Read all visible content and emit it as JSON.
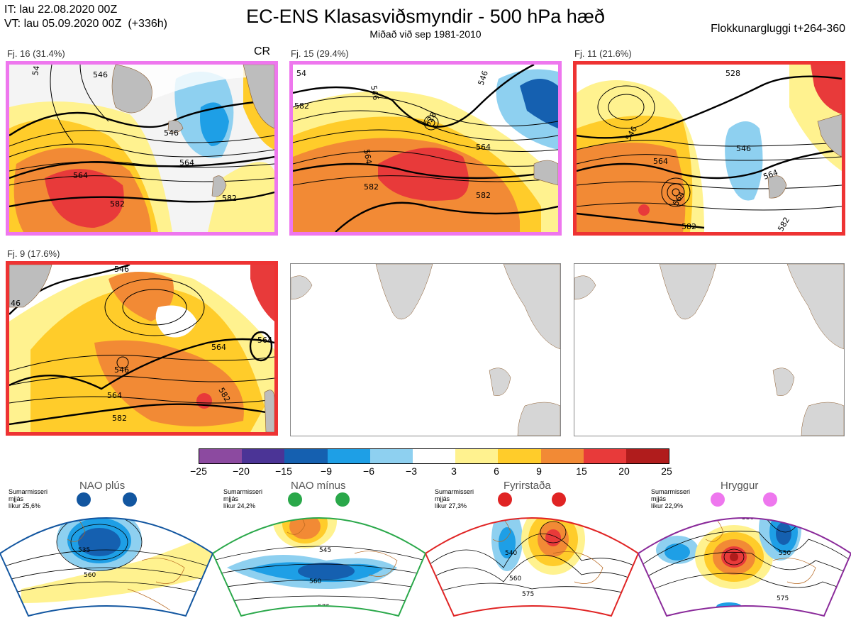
{
  "header": {
    "it_line": "IT: lau 22.08.2020 00Z",
    "vt_line": "VT: lau 05.09.2020 00Z  (+336h)",
    "title": "EC-ENS Klasasviðsmyndir - 500 hPa hæð",
    "subtitle": "Miðað við sep 1981-2010",
    "window": "Flokkunargluggi t+264-360"
  },
  "panels": [
    {
      "label": "Fj. 16 (31.4%)",
      "tag": "CR",
      "border_color": "#ee77ee",
      "contours": [
        "546",
        "546",
        "546",
        "564",
        "564",
        "582",
        "582",
        "54"
      ]
    },
    {
      "label": "Fj. 15 (29.4%)",
      "tag": "",
      "border_color": "#ee77ee",
      "contours": [
        "54",
        "582",
        "546",
        "528",
        "564",
        "546",
        "564",
        "582",
        "582"
      ]
    },
    {
      "label": "Fj. 11 (21.6%)",
      "tag": "",
      "border_color": "#ee3333",
      "contours": [
        "528",
        "546",
        "546",
        "564",
        "564",
        "564",
        "582",
        "582"
      ]
    },
    {
      "label": "Fj. 9 (17.6%)",
      "tag": "",
      "border_color": "#ee3333",
      "contours": [
        "546",
        "46",
        "546",
        "564",
        "564",
        "564",
        "582",
        "582"
      ]
    }
  ],
  "colorbar": {
    "ticks": [
      "−25",
      "−20",
      "−15",
      "−9",
      "−6",
      "−3",
      "3",
      "6",
      "9",
      "15",
      "20",
      "25"
    ],
    "colors": [
      "#8c4aa0",
      "#4b3496",
      "#1560b0",
      "#1e9fe6",
      "#8ed0f0",
      "#ffffff",
      "#fff28f",
      "#ffcc2a",
      "#f28a35",
      "#e83a3a",
      "#b01c1c"
    ]
  },
  "regimes": [
    {
      "name": "NAO plús",
      "info": "Sumarmisseri\nmjjás\nlíkur 25,6%",
      "color": "#1256a0",
      "contours": [
        "535",
        "560"
      ]
    },
    {
      "name": "NAO mínus",
      "info": "Sumarmisseri\nmjjás\nlíkur 24,2%",
      "color": "#2aa84a",
      "contours": [
        "545",
        "560",
        "575"
      ]
    },
    {
      "name": "Fyrirstaða",
      "info": "Sumarmisseri\nmjjás\nlíkur 27,3%",
      "color": "#e02424",
      "contours": [
        "540",
        "560",
        "575"
      ]
    },
    {
      "name": "Hryggur",
      "info": "Sumarmisseri\nmjjás\nlíkur 22,9%",
      "color": "#8a2a9a",
      "contours": [
        "530",
        "550",
        "575"
      ]
    }
  ]
}
